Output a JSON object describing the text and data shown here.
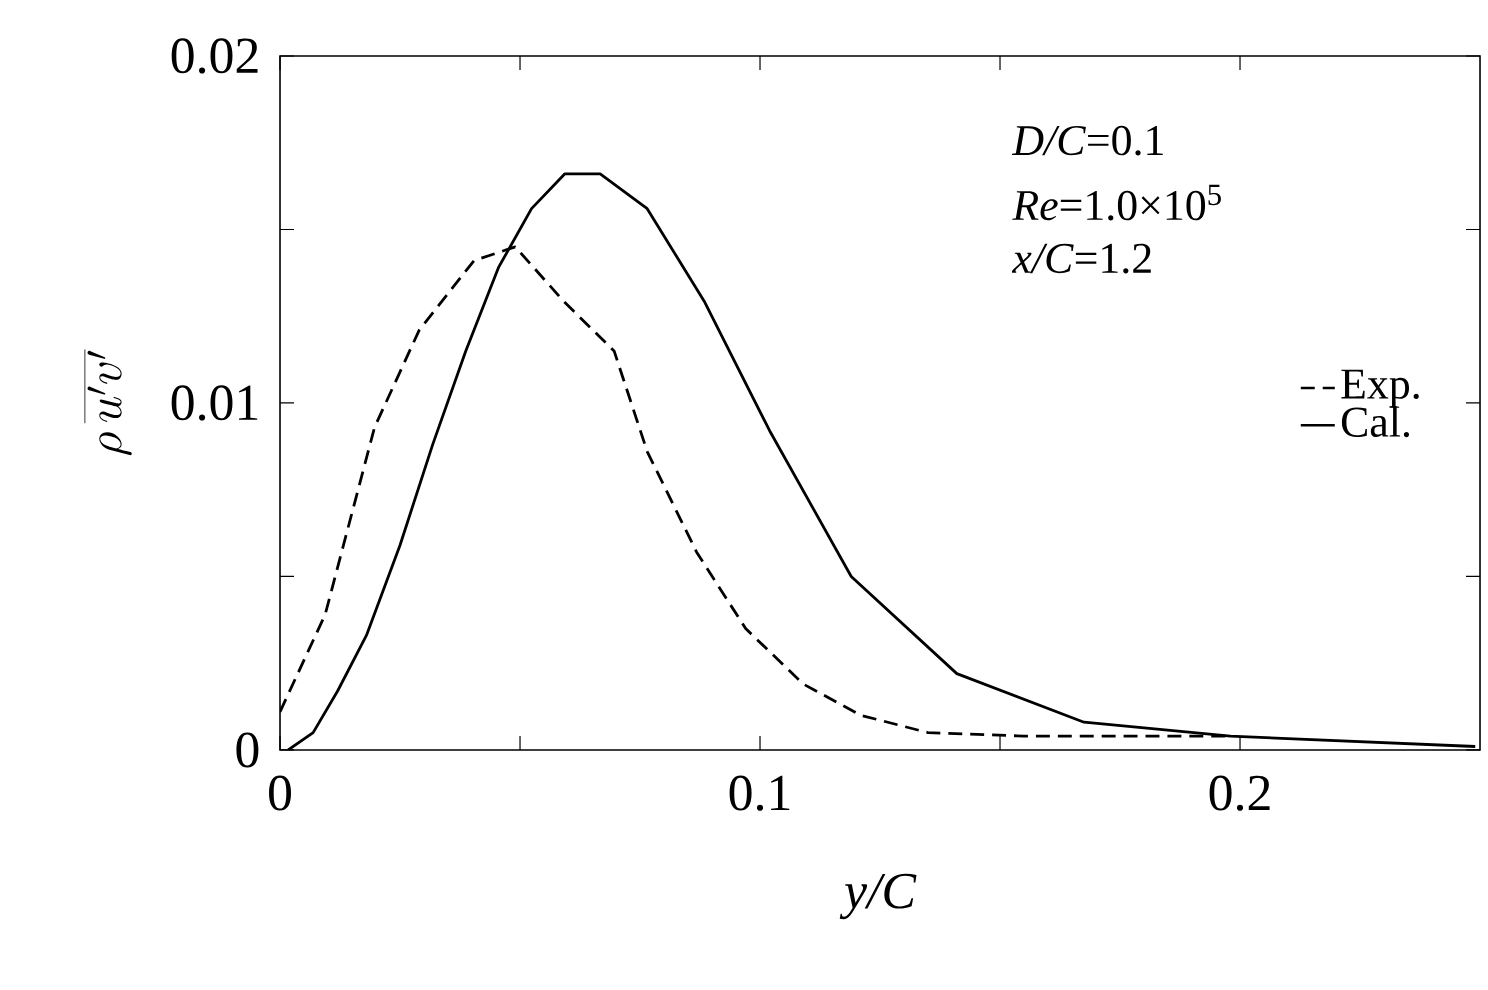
{
  "chart_data": {
    "type": "line",
    "xlabel": "y/C",
    "ylabel": "\\rho\\,\\overline{u'v'}",
    "annotations": [
      "*D/C*=0.1",
      "*Re*=1.0×10$^{5}$",
      "*x/C*=1.2"
    ],
    "xlim": [
      0,
      0.25
    ],
    "ylim": [
      0,
      0.02
    ],
    "xticks": [
      0,
      {
        "value": 0.05,
        "label": null
      },
      0.1,
      {
        "value": 0.15,
        "label": null
      },
      0.2
    ],
    "yticks": [
      0,
      {
        "value": 0.005,
        "label": null
      },
      0.01,
      {
        "value": 0.015,
        "label": null
      },
      0.02
    ],
    "legend": "right",
    "grid": false,
    "series": [
      {
        "name": "Exp.",
        "color": "#000000",
        "line_style": "dashed",
        "x": [
          0,
          0.0094,
          0.0197,
          0.029,
          0.0404,
          0.049,
          0.0593,
          0.0696,
          0.0765,
          0.0868,
          0.097,
          0.109,
          0.121,
          0.135,
          0.155,
          0.198
        ],
        "values": [
          0.0011,
          0.0039,
          0.0093,
          0.0121,
          0.0141,
          0.0145,
          0.0129,
          0.0115,
          0.0086,
          0.0057,
          0.0035,
          0.0019,
          0.001,
          0.0005,
          0.0004,
          0.0004
        ]
      },
      {
        "name": "Cal.",
        "color": "#000000",
        "line_style": "solid",
        "x": [
          0.0017,
          0.0069,
          0.012,
          0.018,
          0.025,
          0.0318,
          0.0387,
          0.0455,
          0.0524,
          0.0593,
          0.0667,
          0.0765,
          0.0885,
          0.102,
          0.119,
          0.141,
          0.1675,
          0.198,
          0.249
        ],
        "values": [
          0,
          0.0005,
          0.0017,
          0.0033,
          0.0059,
          0.0088,
          0.0115,
          0.0139,
          0.0156,
          0.0166,
          0.0166,
          0.0156,
          0.0129,
          0.0092,
          0.005,
          0.0022,
          0.0008,
          0.0004,
          0.0001
        ]
      }
    ]
  }
}
